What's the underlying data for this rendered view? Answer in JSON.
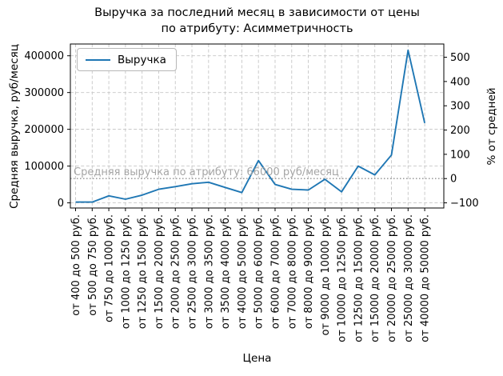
{
  "chart_data": {
    "type": "line",
    "title": "Выручка за последний месяц в зависимости от цены\nпо атрибуту: Асимметричность",
    "xlabel": "Цена",
    "ylabel": "Средняя выручка, руб/месяц",
    "ylabel_right": "% от средней",
    "legend": {
      "position": "upper-left",
      "entries": [
        "Выручка"
      ]
    },
    "categories": [
      "от 400 до 500 руб.",
      "от 500 до 750 руб.",
      "от 750 до 1000 руб.",
      "от 1000 до 1250 руб.",
      "от 1250 до 1500 руб.",
      "от 1500 до 2000 руб.",
      "от 2000 до 2500 руб.",
      "от 2500 до 3000 руб.",
      "от 3000 до 3500 руб.",
      "от 3500 до 4000 руб.",
      "от 4000 до 5000 руб.",
      "от 5000 до 6000 руб.",
      "от 6000 до 7000 руб.",
      "от 7000 до 8000 руб.",
      "от 8000 до 9000 руб.",
      "от 9000 до 10000 руб.",
      "от 10000 до 12500 руб.",
      "от 12500 до 15000 руб.",
      "от 15000 до 20000 руб.",
      "от 20000 до 25000 руб.",
      "от 25000 до 30000 руб.",
      "от 40000 до 50000 руб."
    ],
    "series": [
      {
        "name": "Выручка",
        "color": "#1f77b4",
        "values": [
          2000,
          2000,
          19000,
          10000,
          21000,
          37000,
          44000,
          52000,
          56000,
          42000,
          28000,
          115000,
          50000,
          37000,
          35000,
          64000,
          30000,
          100000,
          76000,
          130000,
          415000,
          217000
        ]
      }
    ],
    "mean_line": {
      "value": 66000,
      "label": "Средняя выручка по атрибуту: 66000 руб/месяц"
    },
    "y_axis_left": {
      "ticks": [
        0,
        100000,
        200000,
        300000,
        400000
      ],
      "lim": [
        -14000,
        432000
      ]
    },
    "y_axis_right": {
      "ticks": [
        -100,
        0,
        100,
        200,
        300,
        400,
        500
      ],
      "unit": "% от средней",
      "base_value": 66000
    },
    "grid": true,
    "colors": {
      "line": "#1f77b4",
      "grid": "#c6c6c6",
      "mean_line": "#8f8f8f",
      "annotation": "#a6a6a6",
      "axis": "#000000"
    }
  }
}
